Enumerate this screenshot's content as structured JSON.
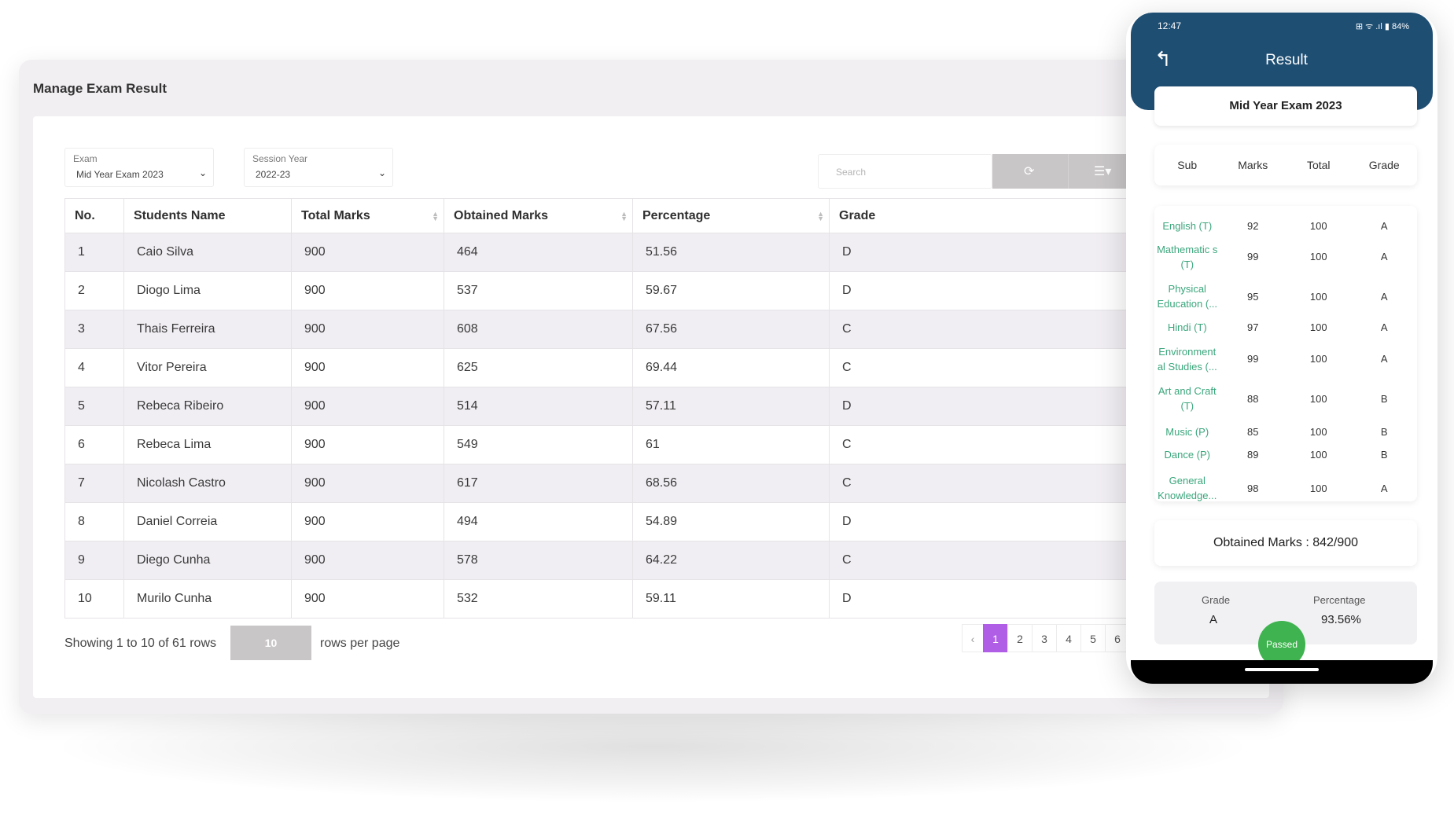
{
  "desktop": {
    "title": "Manage Exam Result",
    "filters": {
      "exam_label": "Exam",
      "exam_value": "Mid Year Exam 2023",
      "session_label": "Session Year",
      "session_value": "2022-23"
    },
    "search_placeholder": "Search",
    "table": {
      "columns": [
        "No.",
        "Students Name",
        "Total Marks",
        "Obtained Marks",
        "Percentage",
        "Grade"
      ],
      "rows": [
        [
          "1",
          "Caio Silva",
          "900",
          "464",
          "51.56",
          "D"
        ],
        [
          "2",
          "Diogo Lima",
          "900",
          "537",
          "59.67",
          "D"
        ],
        [
          "3",
          "Thais Ferreira",
          "900",
          "608",
          "67.56",
          "C"
        ],
        [
          "4",
          "Vitor Pereira",
          "900",
          "625",
          "69.44",
          "C"
        ],
        [
          "5",
          "Rebeca Ribeiro",
          "900",
          "514",
          "57.11",
          "D"
        ],
        [
          "6",
          "Rebeca Lima",
          "900",
          "549",
          "61",
          "C"
        ],
        [
          "7",
          "Nicolash Castro",
          "900",
          "617",
          "68.56",
          "C"
        ],
        [
          "8",
          "Daniel Correia",
          "900",
          "494",
          "54.89",
          "D"
        ],
        [
          "9",
          "Diego Cunha",
          "900",
          "578",
          "64.22",
          "C"
        ],
        [
          "10",
          "Murilo Cunha",
          "900",
          "532",
          "59.11",
          "D"
        ]
      ]
    },
    "pagination": {
      "showing_text": "Showing 1 to 10 of 61 rows",
      "per_page": "10",
      "per_page_label": "rows per page",
      "prev": "‹",
      "pages": [
        "1",
        "2",
        "3",
        "4",
        "5",
        "6"
      ],
      "active_page": "1"
    }
  },
  "phone": {
    "status_time": "12:47",
    "status_icons": "⊞ ᯤ .ıl ▮ 84%",
    "title": "Result",
    "exam_name": "Mid Year Exam 2023",
    "columns": [
      "Sub",
      "Marks",
      "Total",
      "Grade"
    ],
    "subjects": [
      {
        "sub": "English (T)",
        "marks": "92",
        "total": "100",
        "grade": "A"
      },
      {
        "sub": "Mathematic s (T)",
        "marks": "99",
        "total": "100",
        "grade": "A"
      },
      {
        "sub": "Physical Education (...",
        "marks": "95",
        "total": "100",
        "grade": "A"
      },
      {
        "sub": "Hindi (T)",
        "marks": "97",
        "total": "100",
        "grade": "A"
      },
      {
        "sub": "Environment al Studies (...",
        "marks": "99",
        "total": "100",
        "grade": "A"
      },
      {
        "sub": "Art and Craft (T)",
        "marks": "88",
        "total": "100",
        "grade": "B"
      },
      {
        "sub": "Music (P)",
        "marks": "85",
        "total": "100",
        "grade": "B"
      },
      {
        "sub": "Dance (P)",
        "marks": "89",
        "total": "100",
        "grade": "B"
      },
      {
        "sub": "General Knowledge...",
        "marks": "98",
        "total": "100",
        "grade": "A"
      }
    ],
    "obtained_text": "Obtained Marks  :  842/900",
    "grade_label": "Grade",
    "grade_value": "A",
    "percentage_label": "Percentage",
    "percentage_value": "93.56%",
    "status_badge": "Passed"
  },
  "colors": {
    "accent_purple": "#b05ee6",
    "phone_header": "#1f4e73",
    "subject_green": "#3aa67c",
    "passed_green": "#3fb34f"
  }
}
